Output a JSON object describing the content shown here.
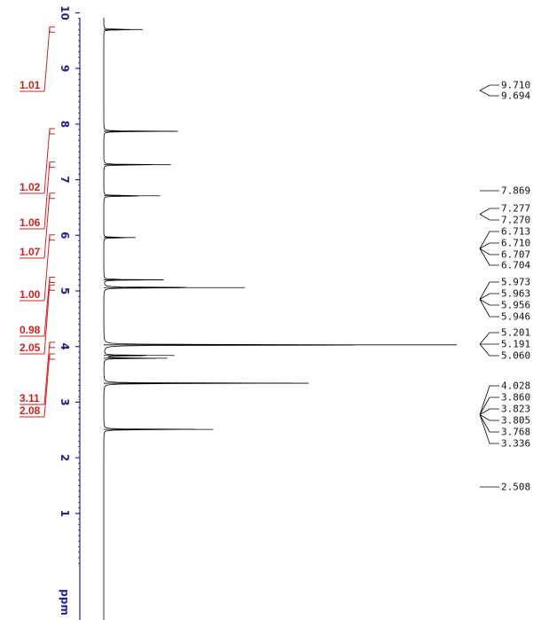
{
  "chart_data": {
    "type": "line",
    "orientation": "vertical-ppm-axis",
    "axis_unit": "ppm",
    "axis_range": [
      0,
      11
    ],
    "axis_ticks": [
      "10",
      "9",
      "8",
      "7",
      "6",
      "5",
      "4",
      "3",
      "2",
      "1"
    ],
    "integrals": [
      {
        "ppm": 9.7,
        "value": "1.01"
      },
      {
        "ppm": 7.87,
        "value": "1.02"
      },
      {
        "ppm": 7.27,
        "value": "1.06"
      },
      {
        "ppm": 6.71,
        "value": "1.07"
      },
      {
        "ppm": 5.96,
        "value": "1.00"
      },
      {
        "ppm": 5.2,
        "value": "0.98"
      },
      {
        "ppm": 5.06,
        "value": "2.05"
      },
      {
        "ppm": 4.03,
        "value": "3.11"
      },
      {
        "ppm": 3.82,
        "value": "2.08"
      }
    ],
    "peak_labels": [
      "9.710",
      "9.694",
      "7.869",
      "7.277",
      "7.270",
      "6.713",
      "6.710",
      "6.707",
      "6.704",
      "5.973",
      "5.963",
      "5.956",
      "5.946",
      "5.201",
      "5.191",
      "5.060",
      "4.028",
      "3.860",
      "3.823",
      "3.805",
      "3.768",
      "3.336",
      "2.508"
    ],
    "peaks": [
      {
        "ppm": 9.7,
        "height": 0.11
      },
      {
        "ppm": 7.87,
        "height": 0.21
      },
      {
        "ppm": 7.27,
        "height": 0.19
      },
      {
        "ppm": 6.71,
        "height": 0.16
      },
      {
        "ppm": 5.96,
        "height": 0.09
      },
      {
        "ppm": 5.2,
        "height": 0.17
      },
      {
        "ppm": 5.06,
        "height": 0.4
      },
      {
        "ppm": 4.03,
        "height": 1.0
      },
      {
        "ppm": 3.84,
        "height": 0.2
      },
      {
        "ppm": 3.79,
        "height": 0.18
      },
      {
        "ppm": 3.34,
        "height": 0.58
      },
      {
        "ppm": 2.51,
        "height": 0.31
      }
    ],
    "colors": {
      "axis": "#23238c",
      "integral": "#cc2222",
      "spectrum": "#000000"
    }
  }
}
